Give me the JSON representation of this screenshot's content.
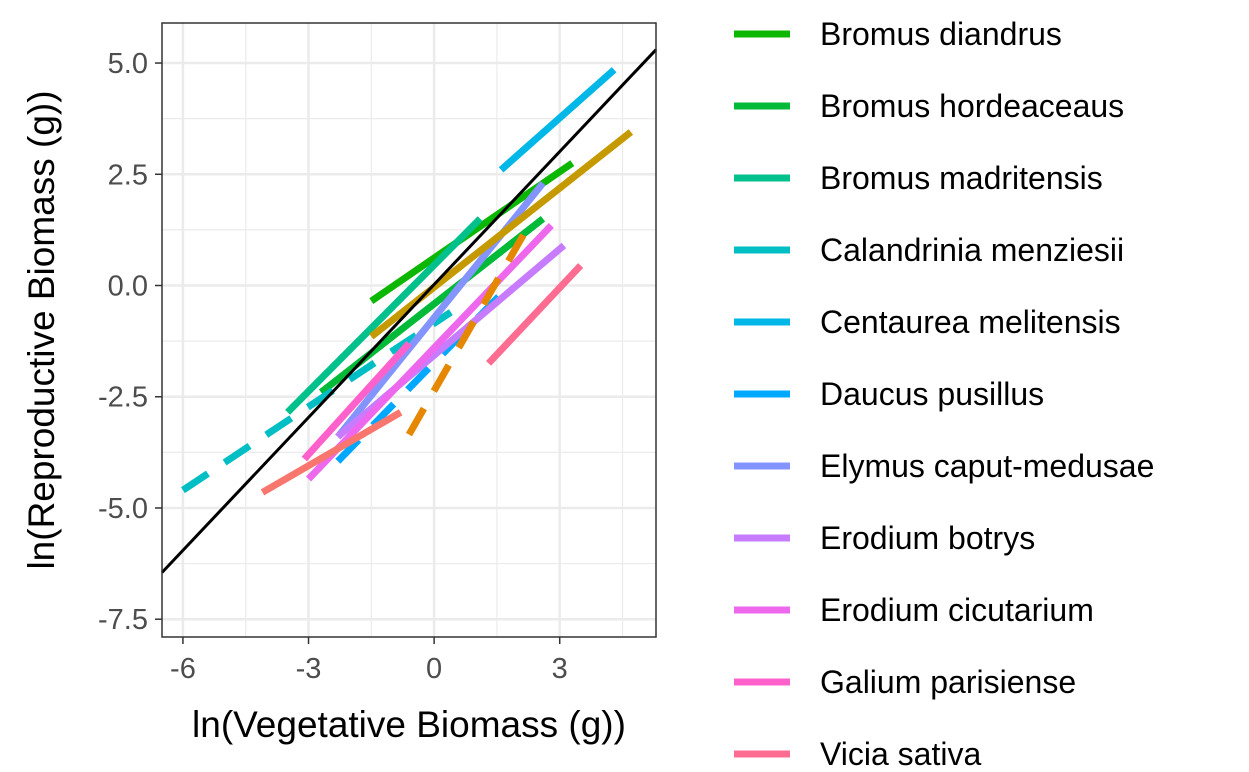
{
  "chart_data": {
    "type": "line",
    "xlabel": "ln(Vegetative Biomass (g))",
    "ylabel": "ln(Reproductive Biomass (g))",
    "xlim": [
      -6.5,
      5.3
    ],
    "ylim": [
      -7.9,
      5.9
    ],
    "x_ticks": [
      -6,
      -3,
      0,
      3
    ],
    "x_tick_labels": [
      "-6",
      "-3",
      "0",
      "3"
    ],
    "y_ticks": [
      5.0,
      2.5,
      0.0,
      -2.5,
      -5.0,
      -7.5
    ],
    "y_tick_labels": [
      "5.0",
      "2.5",
      "0.0",
      "-2.5",
      "-5.0",
      "-7.5"
    ],
    "grid": true,
    "legend_position": "right",
    "reference_line": {
      "x": [
        -6.5,
        5.3
      ],
      "y": [
        -6.45,
        5.3
      ],
      "color": "#000000"
    },
    "series": [
      {
        "name": "Bromus diandrus",
        "color": "#0CB702",
        "dashed": false,
        "x": [
          -1.5,
          3.3
        ],
        "y": [
          -0.35,
          2.75
        ]
      },
      {
        "name": "Bromus hordeaceaus",
        "color": "#00BA38",
        "dashed": false,
        "x": [
          -2.7,
          2.6
        ],
        "y": [
          -2.4,
          1.5
        ]
      },
      {
        "name": "Bromus madritensis",
        "color": "#00C08B",
        "dashed": false,
        "x": [
          -3.5,
          1.1
        ],
        "y": [
          -2.85,
          1.5
        ]
      },
      {
        "name": "Calandrinia menziesii",
        "color": "#00BFC4",
        "dashed": true,
        "x": [
          -6.0,
          0.4
        ],
        "y": [
          -4.6,
          -0.6
        ]
      },
      {
        "name": "Centaurea melitensis",
        "color": "#00B8E7",
        "dashed": false,
        "x": [
          1.6,
          4.3
        ],
        "y": [
          2.6,
          4.85
        ]
      },
      {
        "name": "Daucus pusillus",
        "color": "#00A9FF",
        "dashed": true,
        "x": [
          -2.3,
          1.8
        ],
        "y": [
          -3.95,
          0.0
        ]
      },
      {
        "name": "Elymus caput-medusae",
        "color": "#8494FF",
        "dashed": false,
        "x": [
          -2.3,
          2.6
        ],
        "y": [
          -3.4,
          2.3
        ]
      },
      {
        "name": "Erodium botrys",
        "color": "#C77CFF",
        "dashed": false,
        "x": [
          -2.3,
          3.1
        ],
        "y": [
          -3.4,
          0.9
        ]
      },
      {
        "name": "Erodium cicutarium",
        "color": "#ED68ED",
        "dashed": false,
        "x": [
          -3.0,
          2.8
        ],
        "y": [
          -4.35,
          1.35
        ]
      },
      {
        "name": "Galium parisiense",
        "color": "#FF61CC",
        "dashed": false,
        "x": [
          -3.1,
          -0.6
        ],
        "y": [
          -3.9,
          -1.3
        ]
      },
      {
        "name": "Vicia sativa",
        "color": "#FF6C91",
        "dashed": false,
        "x": [
          1.3,
          3.5
        ],
        "y": [
          -1.75,
          0.45
        ]
      },
      {
        "color": "#F8766D",
        "dashed": false,
        "x": [
          -4.1,
          -0.8
        ],
        "y": [
          -4.65,
          -2.85
        ]
      },
      {
        "color": "#C49A00",
        "dashed": false,
        "x": [
          -1.5,
          4.7
        ],
        "y": [
          -1.15,
          3.45
        ]
      },
      {
        "color": "#E58700",
        "dashed": true,
        "x": [
          -0.6,
          2.2
        ],
        "y": [
          -3.35,
          1.25
        ]
      }
    ]
  }
}
